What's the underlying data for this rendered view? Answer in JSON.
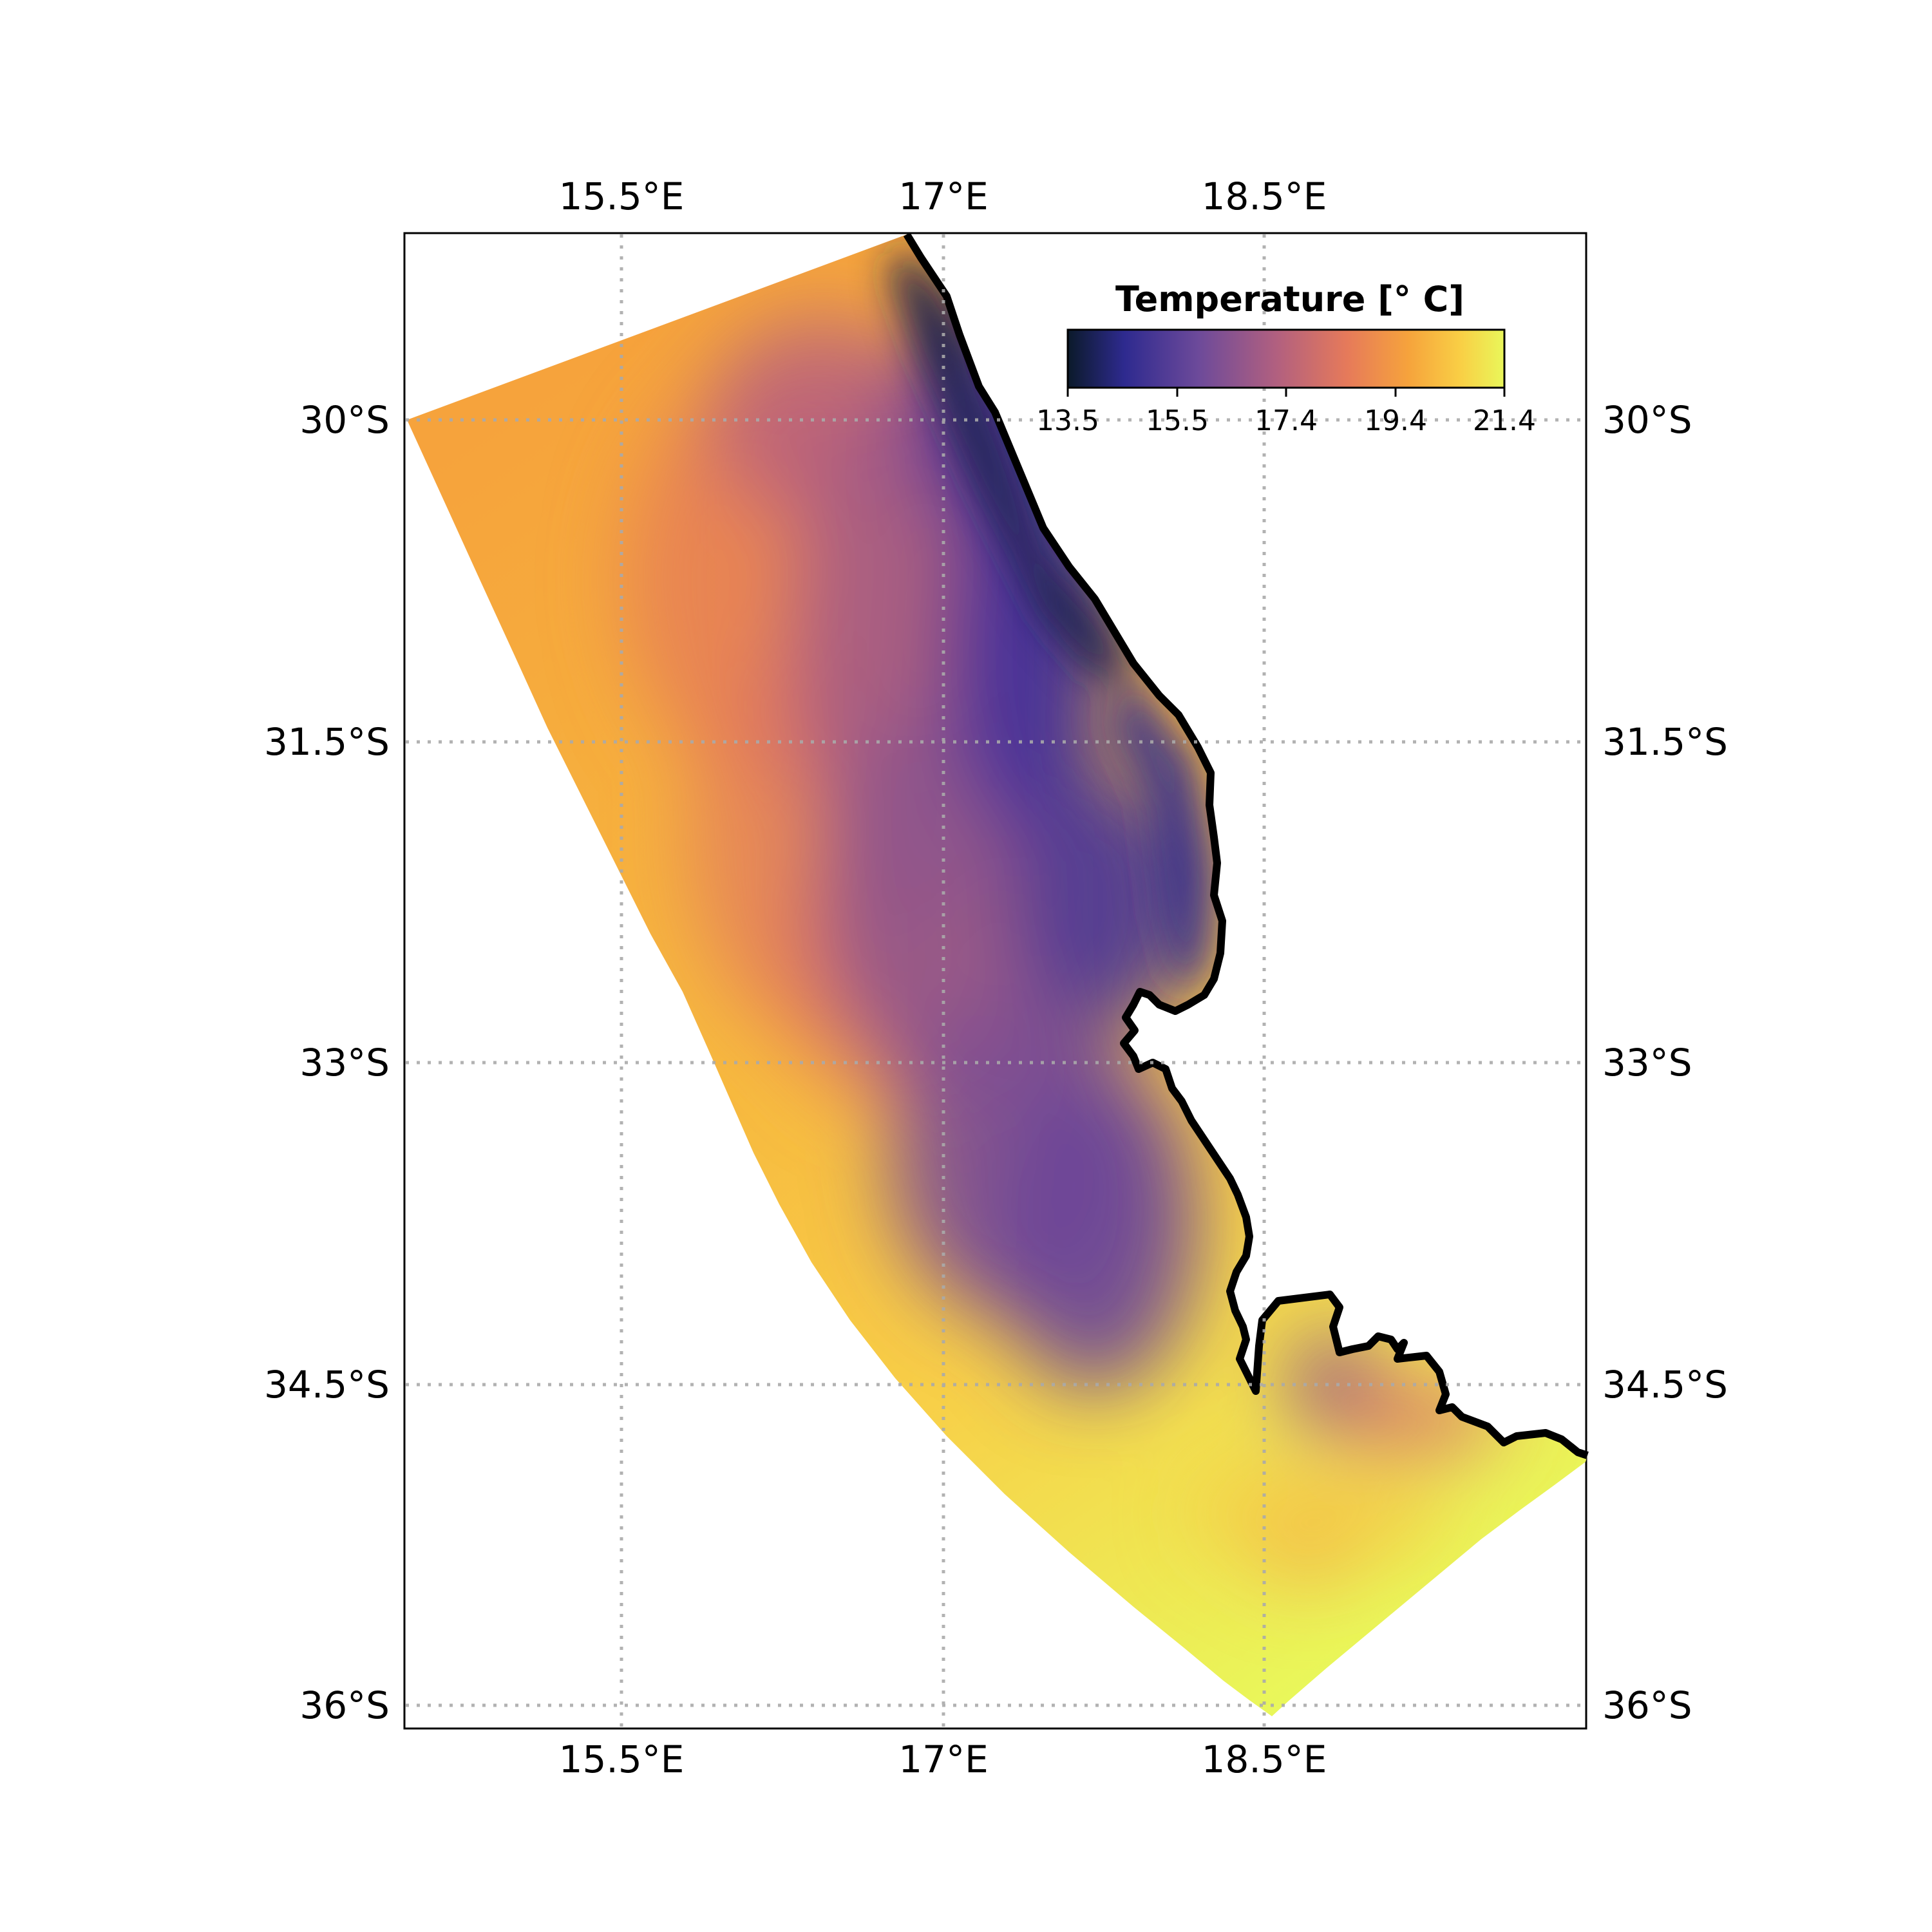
{
  "map": {
    "colorbar": {
      "title": "Temperature [° C]",
      "min": 13.5,
      "max": 21.4,
      "ticks": [
        "13.5",
        "15.5",
        "17.4",
        "19.4",
        "21.4"
      ],
      "colors": [
        "#0b1a2a",
        "#2e2a8f",
        "#6d4a9a",
        "#b2607f",
        "#e67a5a",
        "#f6a33c",
        "#f9cf45",
        "#e9f75a"
      ]
    },
    "lon_labels": [
      "15.5°E",
      "17°E",
      "18.5°E"
    ],
    "lat_labels": [
      "30°S",
      "31.5°S",
      "33°S",
      "34.5°S",
      "36°S"
    ],
    "gridlines": true,
    "coastline_color": "#000000"
  }
}
